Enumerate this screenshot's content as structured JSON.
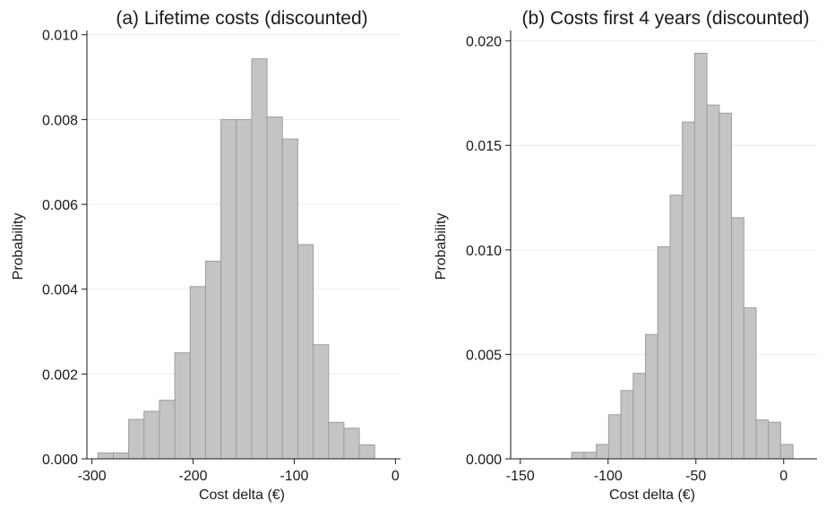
{
  "chart_data": [
    {
      "type": "bar",
      "title": "(a) Lifetime costs (discounted)",
      "xlabel": "Cost delta (€)",
      "ylabel": "Probability",
      "xlim": [
        -305,
        5
      ],
      "ylim": [
        0,
        0.0101
      ],
      "xticks": [
        "-300",
        "-200",
        "-100",
        "0"
      ],
      "xtick_values": [
        -300,
        -200,
        -100,
        0
      ],
      "yticks": [
        "0.000",
        "0.002",
        "0.004",
        "0.006",
        "0.008",
        "0.010"
      ],
      "ytick_values": [
        0,
        0.002,
        0.004,
        0.006,
        0.008,
        0.01
      ],
      "grid": true,
      "bin_width": 15.2,
      "bins": [
        {
          "x0": -294.1,
          "value": 0.00014
        },
        {
          "x0": -278.9,
          "value": 0.00014
        },
        {
          "x0": -263.7,
          "value": 0.00093
        },
        {
          "x0": -248.5,
          "value": 0.00112
        },
        {
          "x0": -233.3,
          "value": 0.00138
        },
        {
          "x0": -218.1,
          "value": 0.0025
        },
        {
          "x0": -202.9,
          "value": 0.00406
        },
        {
          "x0": -187.7,
          "value": 0.00466
        },
        {
          "x0": -172.5,
          "value": 0.008
        },
        {
          "x0": -157.3,
          "value": 0.008
        },
        {
          "x0": -142.1,
          "value": 0.00943
        },
        {
          "x0": -126.9,
          "value": 0.00806
        },
        {
          "x0": -111.7,
          "value": 0.00754
        },
        {
          "x0": -96.5,
          "value": 0.00505
        },
        {
          "x0": -81.3,
          "value": 0.00269
        },
        {
          "x0": -66.1,
          "value": 0.00086
        },
        {
          "x0": -50.9,
          "value": 0.00072
        },
        {
          "x0": -35.7,
          "value": 0.00033
        }
      ]
    },
    {
      "type": "bar",
      "title": "(b) Costs first 4 years (discounted)",
      "xlabel": "Cost delta (€)",
      "ylabel": "Probability",
      "xlim": [
        -155.5,
        19
      ],
      "ylim": [
        0,
        0.0205
      ],
      "xticks": [
        "-150",
        "-100",
        "-50",
        "0"
      ],
      "xtick_values": [
        -150,
        -100,
        -50,
        0
      ],
      "yticks": [
        "0.000",
        "0.005",
        "0.010",
        "0.015",
        "0.020"
      ],
      "ytick_values": [
        0,
        0.005,
        0.01,
        0.015,
        0.02
      ],
      "grid": true,
      "bin_width": 7.0,
      "bins": [
        {
          "x0": -120.7,
          "value": 0.00031
        },
        {
          "x0": -113.7,
          "value": 0.00031
        },
        {
          "x0": -106.7,
          "value": 0.00069
        },
        {
          "x0": -99.7,
          "value": 0.00211
        },
        {
          "x0": -92.7,
          "value": 0.00327
        },
        {
          "x0": -85.7,
          "value": 0.00409
        },
        {
          "x0": -78.7,
          "value": 0.00595
        },
        {
          "x0": -71.7,
          "value": 0.01015
        },
        {
          "x0": -64.7,
          "value": 0.01262
        },
        {
          "x0": -57.7,
          "value": 0.01612
        },
        {
          "x0": -50.7,
          "value": 0.01941
        },
        {
          "x0": -43.7,
          "value": 0.01693
        },
        {
          "x0": -36.7,
          "value": 0.01654
        },
        {
          "x0": -29.7,
          "value": 0.01154
        },
        {
          "x0": -22.7,
          "value": 0.00723
        },
        {
          "x0": -15.7,
          "value": 0.00186
        },
        {
          "x0": -8.7,
          "value": 0.00175
        },
        {
          "x0": -1.7,
          "value": 0.00069
        }
      ]
    }
  ]
}
